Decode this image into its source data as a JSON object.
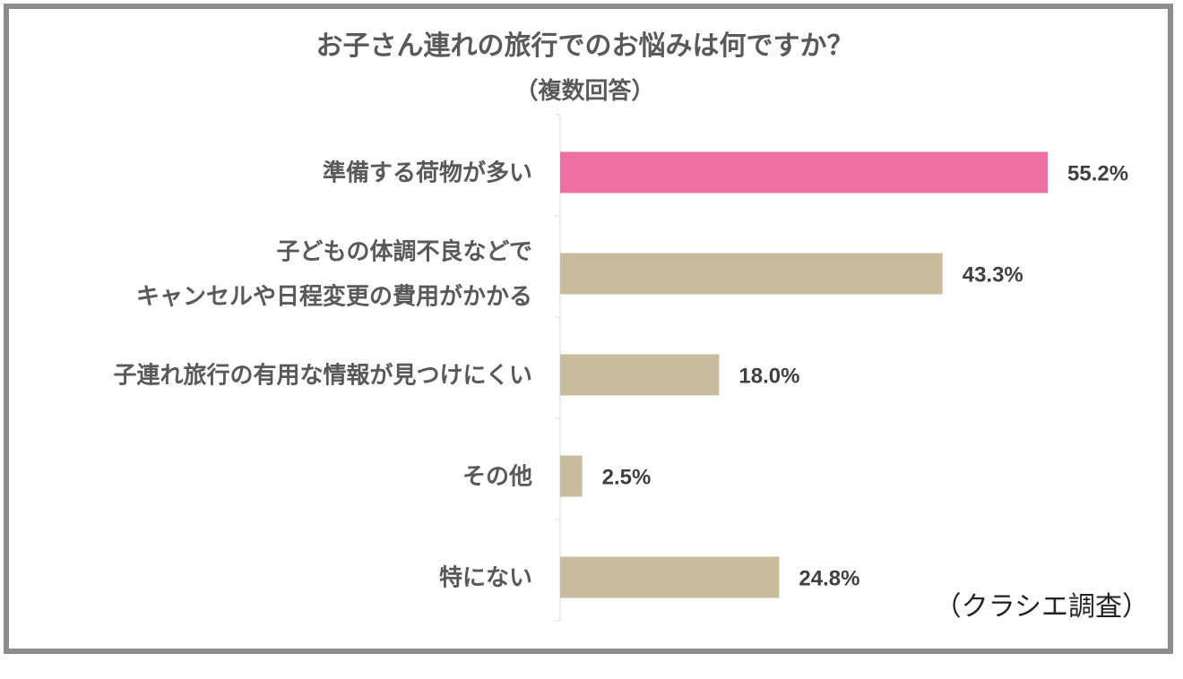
{
  "chart_data": {
    "type": "bar",
    "orientation": "horizontal",
    "title": "お子さん連れの旅行でのお悩みは何ですか？",
    "subtitle": "（複数回答）",
    "categories": [
      [
        "準備する荷物が多い"
      ],
      [
        "子どもの体調不良などで",
        "キャンセルや日程変更の費用がかかる"
      ],
      [
        "子連れ旅行の有用な情報が見つけにくい"
      ],
      [
        "その他"
      ],
      [
        "特にない"
      ]
    ],
    "values": [
      55.2,
      43.3,
      18.0,
      2.5,
      24.8
    ],
    "value_labels": [
      "55.2%",
      "43.3%",
      "18.0%",
      "2.5%",
      "24.8%"
    ],
    "xlim": [
      0,
      100
    ],
    "colors": [
      "#ed6fa4",
      "#c9bc9c",
      "#c9bc9c",
      "#c9bc9c",
      "#c9bc9c"
    ],
    "grid": false,
    "source": "（クラシエ調査）"
  }
}
